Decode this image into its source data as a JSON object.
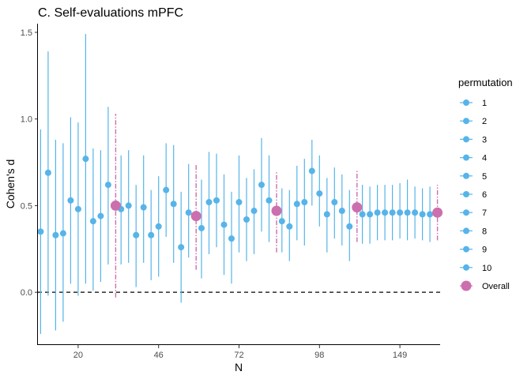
{
  "chart_data": {
    "type": "scatter",
    "title": "C. Self-evaluations mPFC",
    "xlabel": "N",
    "ylabel": "Cohen's d",
    "ylim": [
      -0.3,
      1.55
    ],
    "yticks": [
      0.0,
      0.5,
      1.0,
      1.5
    ],
    "ytick_labels": [
      "0.0",
      "0.5",
      "1.0",
      "1.5"
    ],
    "categories": [
      "20",
      "46",
      "72",
      "98",
      "149"
    ],
    "reference_line": 0,
    "grid": false,
    "legend_title": "permutation",
    "legend_position": "right",
    "colors": {
      "permutation": "#56B4E9",
      "overall": "#CC6FAE",
      "reference": "#000000",
      "axis": "#000000"
    },
    "series": [
      {
        "name": "1",
        "values": [
          [
            0.35,
            -0.24,
            0.94
          ],
          [
            0.48,
            0.16,
            0.79
          ],
          [
            0.37,
            0.08,
            0.65
          ],
          [
            0.41,
            0.23,
            0.6
          ],
          [
            0.45,
            0.28,
            0.62
          ]
        ]
      },
      {
        "name": "2",
        "values": [
          [
            0.69,
            -0.02,
            1.39
          ],
          [
            0.5,
            0.17,
            0.82
          ],
          [
            0.52,
            0.22,
            0.81
          ],
          [
            0.38,
            0.18,
            0.59
          ],
          [
            0.45,
            0.28,
            0.61
          ]
        ]
      },
      {
        "name": "3",
        "values": [
          [
            0.33,
            -0.22,
            0.88
          ],
          [
            0.33,
            0.03,
            0.62
          ],
          [
            0.53,
            0.26,
            0.8
          ],
          [
            0.51,
            0.3,
            0.73
          ],
          [
            0.46,
            0.3,
            0.62
          ]
        ]
      },
      {
        "name": "4",
        "values": [
          [
            0.34,
            -0.17,
            0.86
          ],
          [
            0.49,
            0.17,
            0.79
          ],
          [
            0.39,
            0.1,
            0.68
          ],
          [
            0.52,
            0.27,
            0.77
          ],
          [
            0.46,
            0.3,
            0.62
          ]
        ]
      },
      {
        "name": "5",
        "values": [
          [
            0.53,
            0.05,
            1.01
          ],
          [
            0.33,
            0.07,
            0.59
          ],
          [
            0.31,
            0.05,
            0.58
          ],
          [
            0.7,
            0.5,
            0.88
          ],
          [
            0.46,
            0.3,
            0.62
          ]
        ]
      },
      {
        "name": "6",
        "values": [
          [
            0.48,
            -0.02,
            0.98
          ],
          [
            0.38,
            0.09,
            0.67
          ],
          [
            0.52,
            0.23,
            0.79
          ],
          [
            0.57,
            0.38,
            0.79
          ],
          [
            0.46,
            0.31,
            0.63
          ]
        ]
      },
      {
        "name": "7",
        "values": [
          [
            0.77,
            0.05,
            1.49
          ],
          [
            0.59,
            0.32,
            0.86
          ],
          [
            0.42,
            0.18,
            0.66
          ],
          [
            0.45,
            0.23,
            0.66
          ],
          [
            0.46,
            0.3,
            0.65
          ]
        ]
      },
      {
        "name": "8",
        "values": [
          [
            0.41,
            0.01,
            0.83
          ],
          [
            0.51,
            0.17,
            0.85
          ],
          [
            0.47,
            0.22,
            0.71
          ],
          [
            0.52,
            0.31,
            0.72
          ],
          [
            0.46,
            0.31,
            0.61
          ]
        ]
      },
      {
        "name": "9",
        "values": [
          [
            0.44,
            0.06,
            0.82
          ],
          [
            0.26,
            -0.06,
            0.58
          ],
          [
            0.62,
            0.35,
            0.89
          ],
          [
            0.47,
            0.27,
            0.68
          ],
          [
            0.45,
            0.3,
            0.6
          ]
        ]
      },
      {
        "name": "10",
        "values": [
          [
            0.62,
            0.16,
            1.07
          ],
          [
            0.46,
            0.2,
            0.74
          ],
          [
            0.53,
            0.29,
            0.79
          ],
          [
            0.38,
            0.18,
            0.59
          ],
          [
            0.45,
            0.29,
            0.61
          ]
        ]
      },
      {
        "name": "Overall",
        "values": [
          [
            0.5,
            -0.03,
            1.03
          ],
          [
            0.44,
            0.13,
            0.74
          ],
          [
            0.47,
            0.23,
            0.7
          ],
          [
            0.49,
            0.29,
            0.7
          ],
          [
            0.46,
            0.3,
            0.62
          ]
        ]
      }
    ]
  }
}
